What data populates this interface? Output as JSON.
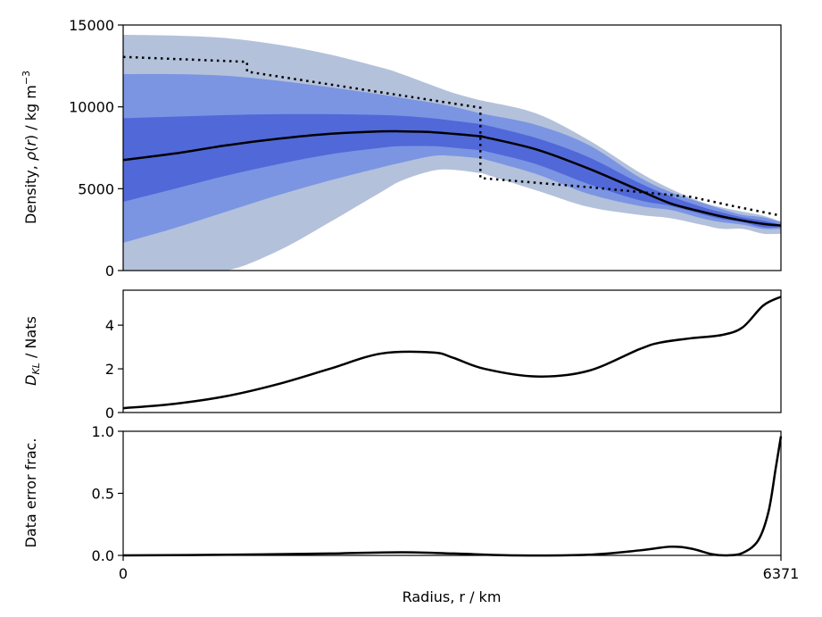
{
  "chart_data": [
    {
      "type": "line",
      "panel": "density",
      "ylabel_parts": [
        "Density, ",
        "ρ",
        "(",
        "r",
        ") / kg m",
        "−3"
      ],
      "xlim": [
        0,
        6371
      ],
      "ylim": [
        0,
        15000
      ],
      "yticks": [
        0,
        5000,
        10000,
        15000
      ],
      "ytick_labels": [
        "0",
        "5000",
        "10000",
        "15000"
      ],
      "colors": {
        "band_outer": "#b4c1db",
        "band_middle": "#7b95e3",
        "band_inner": "#5168d8",
        "line": "#000000"
      },
      "x": [
        0,
        500,
        1000,
        1500,
        2000,
        2500,
        2700,
        3000,
        3200,
        3460,
        3500,
        4000,
        4500,
        5000,
        5300,
        5600,
        5800,
        6000,
        6200,
        6371
      ],
      "series": [
        {
          "role": "band_outer_upper",
          "values": [
            14400,
            14350,
            14200,
            13800,
            13200,
            12400,
            12000,
            11300,
            10850,
            10400,
            10350,
            9600,
            8000,
            6000,
            5000,
            4200,
            3850,
            3600,
            3350,
            3000
          ]
        },
        {
          "role": "band_outer_lower",
          "values": [
            0,
            0,
            0,
            1200,
            2950,
            4800,
            5500,
            6100,
            6150,
            5950,
            5900,
            4900,
            3900,
            3400,
            3200,
            2800,
            2550,
            2550,
            2250,
            2250
          ]
        },
        {
          "role": "band_middle_upper",
          "values": [
            12000,
            12000,
            11900,
            11600,
            11200,
            10750,
            10550,
            10250,
            10000,
            9600,
            9550,
            8900,
            7700,
            5700,
            4800,
            4150,
            3750,
            3400,
            3250,
            2950
          ]
        },
        {
          "role": "band_middle_lower",
          "values": [
            1700,
            2600,
            3600,
            4600,
            5500,
            6300,
            6600,
            7000,
            7000,
            6850,
            6800,
            5900,
            4700,
            3950,
            3700,
            3200,
            2950,
            2800,
            2550,
            2550
          ]
        },
        {
          "role": "band_inner_upper",
          "values": [
            9300,
            9400,
            9500,
            9550,
            9550,
            9500,
            9450,
            9300,
            9150,
            8950,
            8900,
            8100,
            6950,
            5350,
            4550,
            3900,
            3550,
            3250,
            3050,
            2800
          ]
        },
        {
          "role": "band_inner_lower",
          "values": [
            4200,
            5000,
            5800,
            6500,
            7100,
            7500,
            7600,
            7600,
            7500,
            7350,
            7300,
            6500,
            5300,
            4300,
            3950,
            3450,
            3150,
            2950,
            2650,
            2650
          ]
        },
        {
          "role": "mean",
          "values": [
            6750,
            7150,
            7650,
            8050,
            8350,
            8500,
            8500,
            8450,
            8350,
            8200,
            8150,
            7400,
            6250,
            4900,
            4100,
            3600,
            3300,
            3050,
            2850,
            2750
          ]
        }
      ],
      "reference": {
        "style": "dotted",
        "x": [
          0,
          1200,
          1200,
          3460,
          3460,
          6371
        ],
        "values": [
          13050,
          12750,
          12150,
          9950,
          5650,
          3350
        ],
        "step_detail": {
          "x": [
            0,
            1200,
            1200,
            3460,
            3460,
            4500,
            5000,
            5500,
            5900,
            6371
          ],
          "values": [
            13050,
            12750,
            12150,
            9950,
            5650,
            5100,
            4800,
            4500,
            3950,
            3350
          ]
        }
      }
    },
    {
      "type": "line",
      "panel": "dkl",
      "ylabel_parts": [
        "D",
        "KL",
        " / Nats"
      ],
      "xlim": [
        0,
        6371
      ],
      "ylim": [
        0,
        5.6
      ],
      "yticks": [
        0,
        2,
        4
      ],
      "ytick_labels": [
        "0",
        "2",
        "4"
      ],
      "x": [
        0,
        500,
        1000,
        1500,
        2000,
        2500,
        3000,
        3200,
        3500,
        4000,
        4500,
        5000,
        5200,
        5500,
        5800,
        6000,
        6200,
        6371
      ],
      "values": [
        0.2,
        0.4,
        0.75,
        1.3,
        2.0,
        2.7,
        2.75,
        2.5,
        2.0,
        1.65,
        1.9,
        2.9,
        3.2,
        3.4,
        3.55,
        3.9,
        4.9,
        5.3
      ]
    },
    {
      "type": "line",
      "panel": "error",
      "ylabel": "Data error frac.",
      "xlabel": "Radius, r / km",
      "xlim": [
        0,
        6371
      ],
      "ylim": [
        0,
        1
      ],
      "yticks": [
        0,
        0.5,
        1.0
      ],
      "ytick_labels": [
        "0.0",
        "0.5",
        "1.0"
      ],
      "xticks": [
        0,
        6371
      ],
      "xtick_labels": [
        "0",
        "6371"
      ],
      "x": [
        0,
        1000,
        2000,
        2700,
        3200,
        3800,
        4500,
        5000,
        5300,
        5500,
        5700,
        5850,
        6000,
        6150,
        6250,
        6320,
        6371
      ],
      "values": [
        0,
        0.005,
        0.015,
        0.025,
        0.015,
        0.0,
        0.005,
        0.04,
        0.07,
        0.055,
        0.01,
        0.0,
        0.02,
        0.12,
        0.35,
        0.7,
        0.96
      ]
    }
  ]
}
